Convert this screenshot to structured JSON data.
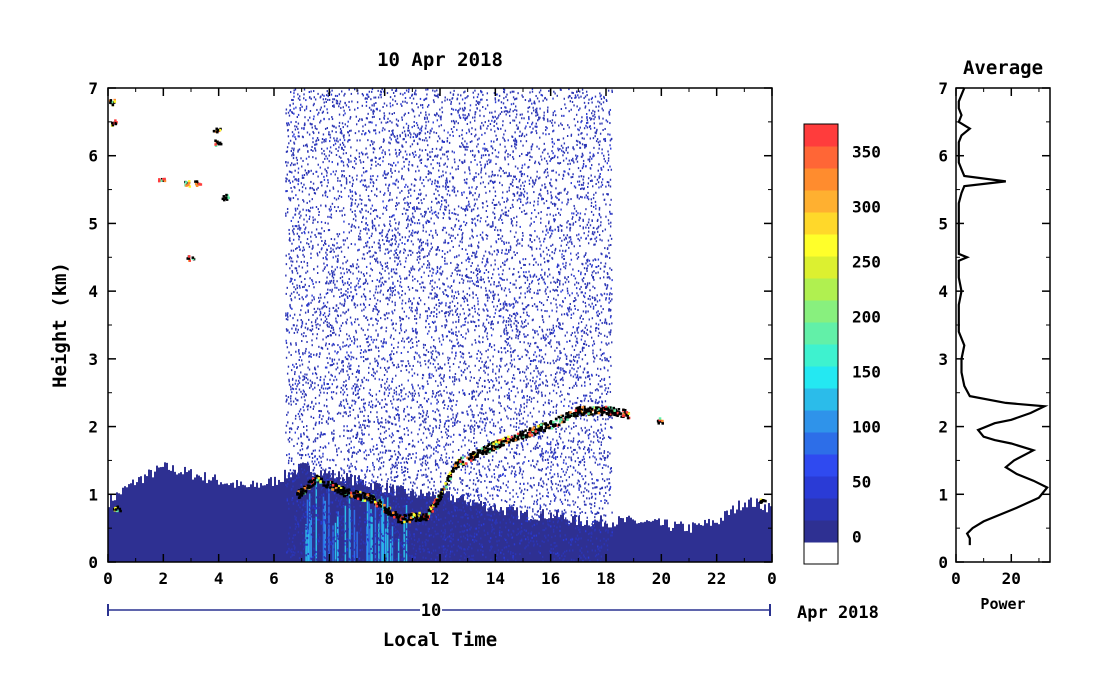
{
  "chart_data": [
    {
      "type": "heatmap",
      "title": "10 Apr 2018",
      "xlabel": "Local Time",
      "ylabel": "Height (km)",
      "xlim": [
        0,
        24
      ],
      "ylim": [
        0,
        7
      ],
      "x_ticks": [
        "0",
        "2",
        "4",
        "6",
        "8",
        "10",
        "12",
        "14",
        "16",
        "18",
        "20",
        "22",
        "0"
      ],
      "y_ticks": [
        "0",
        "1",
        "2",
        "3",
        "4",
        "5",
        "6",
        "7"
      ],
      "date_bar": {
        "day": "10",
        "month_year": "Apr 2018"
      },
      "colorbar": {
        "ticks": [
          "0",
          "50",
          "100",
          "150",
          "200",
          "250",
          "300",
          "350"
        ],
        "range": [
          -25,
          375
        ],
        "colors": [
          "#ffffff",
          "#2e3092",
          "#2b35b4",
          "#2a3bd6",
          "#2f4af0",
          "#2d6ee8",
          "#2f93ea",
          "#2bbcea",
          "#24e8f2",
          "#3ef2cf",
          "#62f0a8",
          "#88f07e",
          "#b0f050",
          "#dcf030",
          "#ffff2a",
          "#ffd82a",
          "#ffb030",
          "#ff8c2e",
          "#ff6636",
          "#ff3c3c"
        ]
      },
      "features": {
        "boundary_layer_top_km": [
          [
            0,
            0.9
          ],
          [
            1,
            1.2
          ],
          [
            2,
            1.4
          ],
          [
            3,
            1.3
          ],
          [
            4,
            1.2
          ],
          [
            5,
            1.1
          ],
          [
            6,
            1.2
          ],
          [
            7,
            1.4
          ],
          [
            8,
            1.3
          ],
          [
            9,
            1.2
          ],
          [
            10,
            1.1
          ],
          [
            11,
            1.0
          ],
          [
            12,
            1.0
          ],
          [
            13,
            0.9
          ],
          [
            14,
            0.8
          ],
          [
            15,
            0.7
          ],
          [
            16,
            0.7
          ],
          [
            17,
            0.6
          ],
          [
            18,
            0.6
          ],
          [
            19,
            0.6
          ],
          [
            20,
            0.55
          ],
          [
            21,
            0.5
          ],
          [
            22,
            0.6
          ],
          [
            23,
            0.9
          ],
          [
            24,
            0.8
          ]
        ],
        "cloud_layer_km": [
          [
            6.8,
            1.0
          ],
          [
            7.5,
            1.25
          ],
          [
            8.5,
            1.05
          ],
          [
            9.5,
            0.95
          ],
          [
            10.5,
            0.65
          ],
          [
            11.5,
            0.7
          ],
          [
            12,
            1.0
          ],
          [
            12.5,
            1.45
          ],
          [
            13,
            1.55
          ],
          [
            14,
            1.75
          ],
          [
            15,
            1.9
          ],
          [
            16,
            2.05
          ],
          [
            17,
            2.25
          ],
          [
            18,
            2.25
          ],
          [
            18.8,
            2.2
          ]
        ],
        "noise_band_hours": [
          6.4,
          18.2
        ]
      }
    },
    {
      "type": "line",
      "title": "Average",
      "xlabel": "Power",
      "xlim": [
        0,
        34
      ],
      "ylim": [
        0,
        7
      ],
      "x_ticks": [
        "0",
        "20"
      ],
      "y_ticks": [
        "0",
        "1",
        "2",
        "3",
        "4",
        "5",
        "6",
        "7"
      ],
      "series": [
        {
          "x": [
            5,
            5,
            4,
            6,
            10,
            22,
            30,
            33,
            28,
            22,
            18,
            21,
            28,
            20,
            14,
            10,
            8,
            14,
            20,
            27,
            32,
            18,
            5,
            3,
            2,
            2,
            3,
            1,
            1,
            1,
            2,
            1,
            1,
            1,
            4,
            1,
            1,
            1,
            1,
            1,
            2,
            3,
            18,
            3,
            2,
            1,
            1,
            1,
            1,
            2,
            5,
            1,
            2,
            1,
            1,
            2,
            3
          ],
          "y": [
            0.25,
            0.35,
            0.42,
            0.5,
            0.6,
            0.8,
            0.95,
            1.1,
            1.2,
            1.3,
            1.4,
            1.5,
            1.65,
            1.75,
            1.8,
            1.85,
            1.95,
            2.05,
            2.1,
            2.2,
            2.3,
            2.35,
            2.45,
            2.6,
            2.8,
            3.0,
            3.2,
            3.4,
            3.6,
            3.8,
            4.0,
            4.2,
            4.4,
            4.45,
            4.5,
            4.55,
            4.7,
            4.9,
            5.1,
            5.3,
            5.45,
            5.55,
            5.62,
            5.7,
            5.8,
            5.9,
            6.0,
            6.1,
            6.2,
            6.3,
            6.4,
            6.5,
            6.6,
            6.7,
            6.8,
            6.9,
            7.0
          ]
        }
      ]
    }
  ]
}
